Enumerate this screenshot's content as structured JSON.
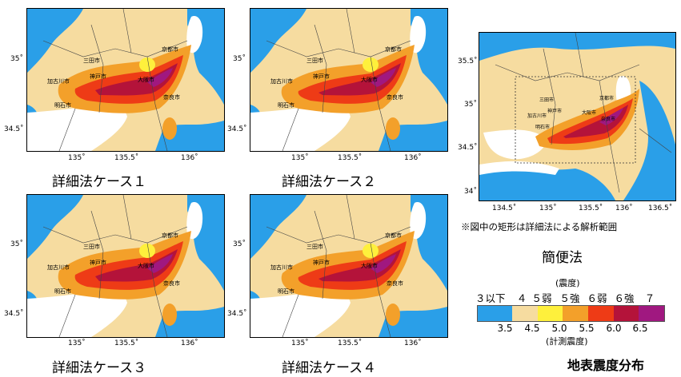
{
  "panels": [
    {
      "caption": "詳細法ケース１",
      "x_ticks": [
        "135˚",
        "135.5˚",
        "136˚"
      ],
      "y_ticks": [
        "35˚",
        "34.5˚"
      ]
    },
    {
      "caption": "詳細法ケース２",
      "x_ticks": [
        "135˚",
        "135.5˚",
        "136˚"
      ],
      "y_ticks": [
        "35˚",
        "34.5˚"
      ]
    },
    {
      "caption": "詳細法ケース３",
      "x_ticks": [
        "135˚",
        "135.5˚",
        "136˚"
      ],
      "y_ticks": [
        "35˚",
        "34.5˚"
      ]
    },
    {
      "caption": "詳細法ケース４",
      "x_ticks": [
        "135˚",
        "135.5˚",
        "136˚"
      ],
      "y_ticks": [
        "35˚",
        "34.5˚"
      ]
    }
  ],
  "simple": {
    "caption": "簡便法",
    "note": "※図中の矩形は詳細法による解析範囲",
    "x_ticks": [
      "134.5˚",
      "135˚",
      "135.5˚",
      "136˚",
      "136.5˚"
    ],
    "y_ticks": [
      "35.5˚",
      "35˚",
      "34.5˚",
      "34˚"
    ]
  },
  "city_labels": [
    "三田市",
    "加古川市",
    "神戸市",
    "明石市",
    "京都市",
    "奈良市",
    "大阪市"
  ],
  "legend": {
    "title_top": "(震度)",
    "title_bottom": "(計測震度)",
    "classes": [
      "３以下",
      "４",
      "５弱",
      "５強",
      "６弱",
      "６強",
      "７"
    ],
    "values": [
      "3.5",
      "4.5",
      "5.0",
      "5.5",
      "6.0",
      "6.5"
    ],
    "colors": [
      "#2a9fe8",
      "#f6dca0",
      "#fef03c",
      "#f3a02a",
      "#ee3b16",
      "#b4133a",
      "#a01880"
    ]
  },
  "bottom_title": "地表震度分布"
}
